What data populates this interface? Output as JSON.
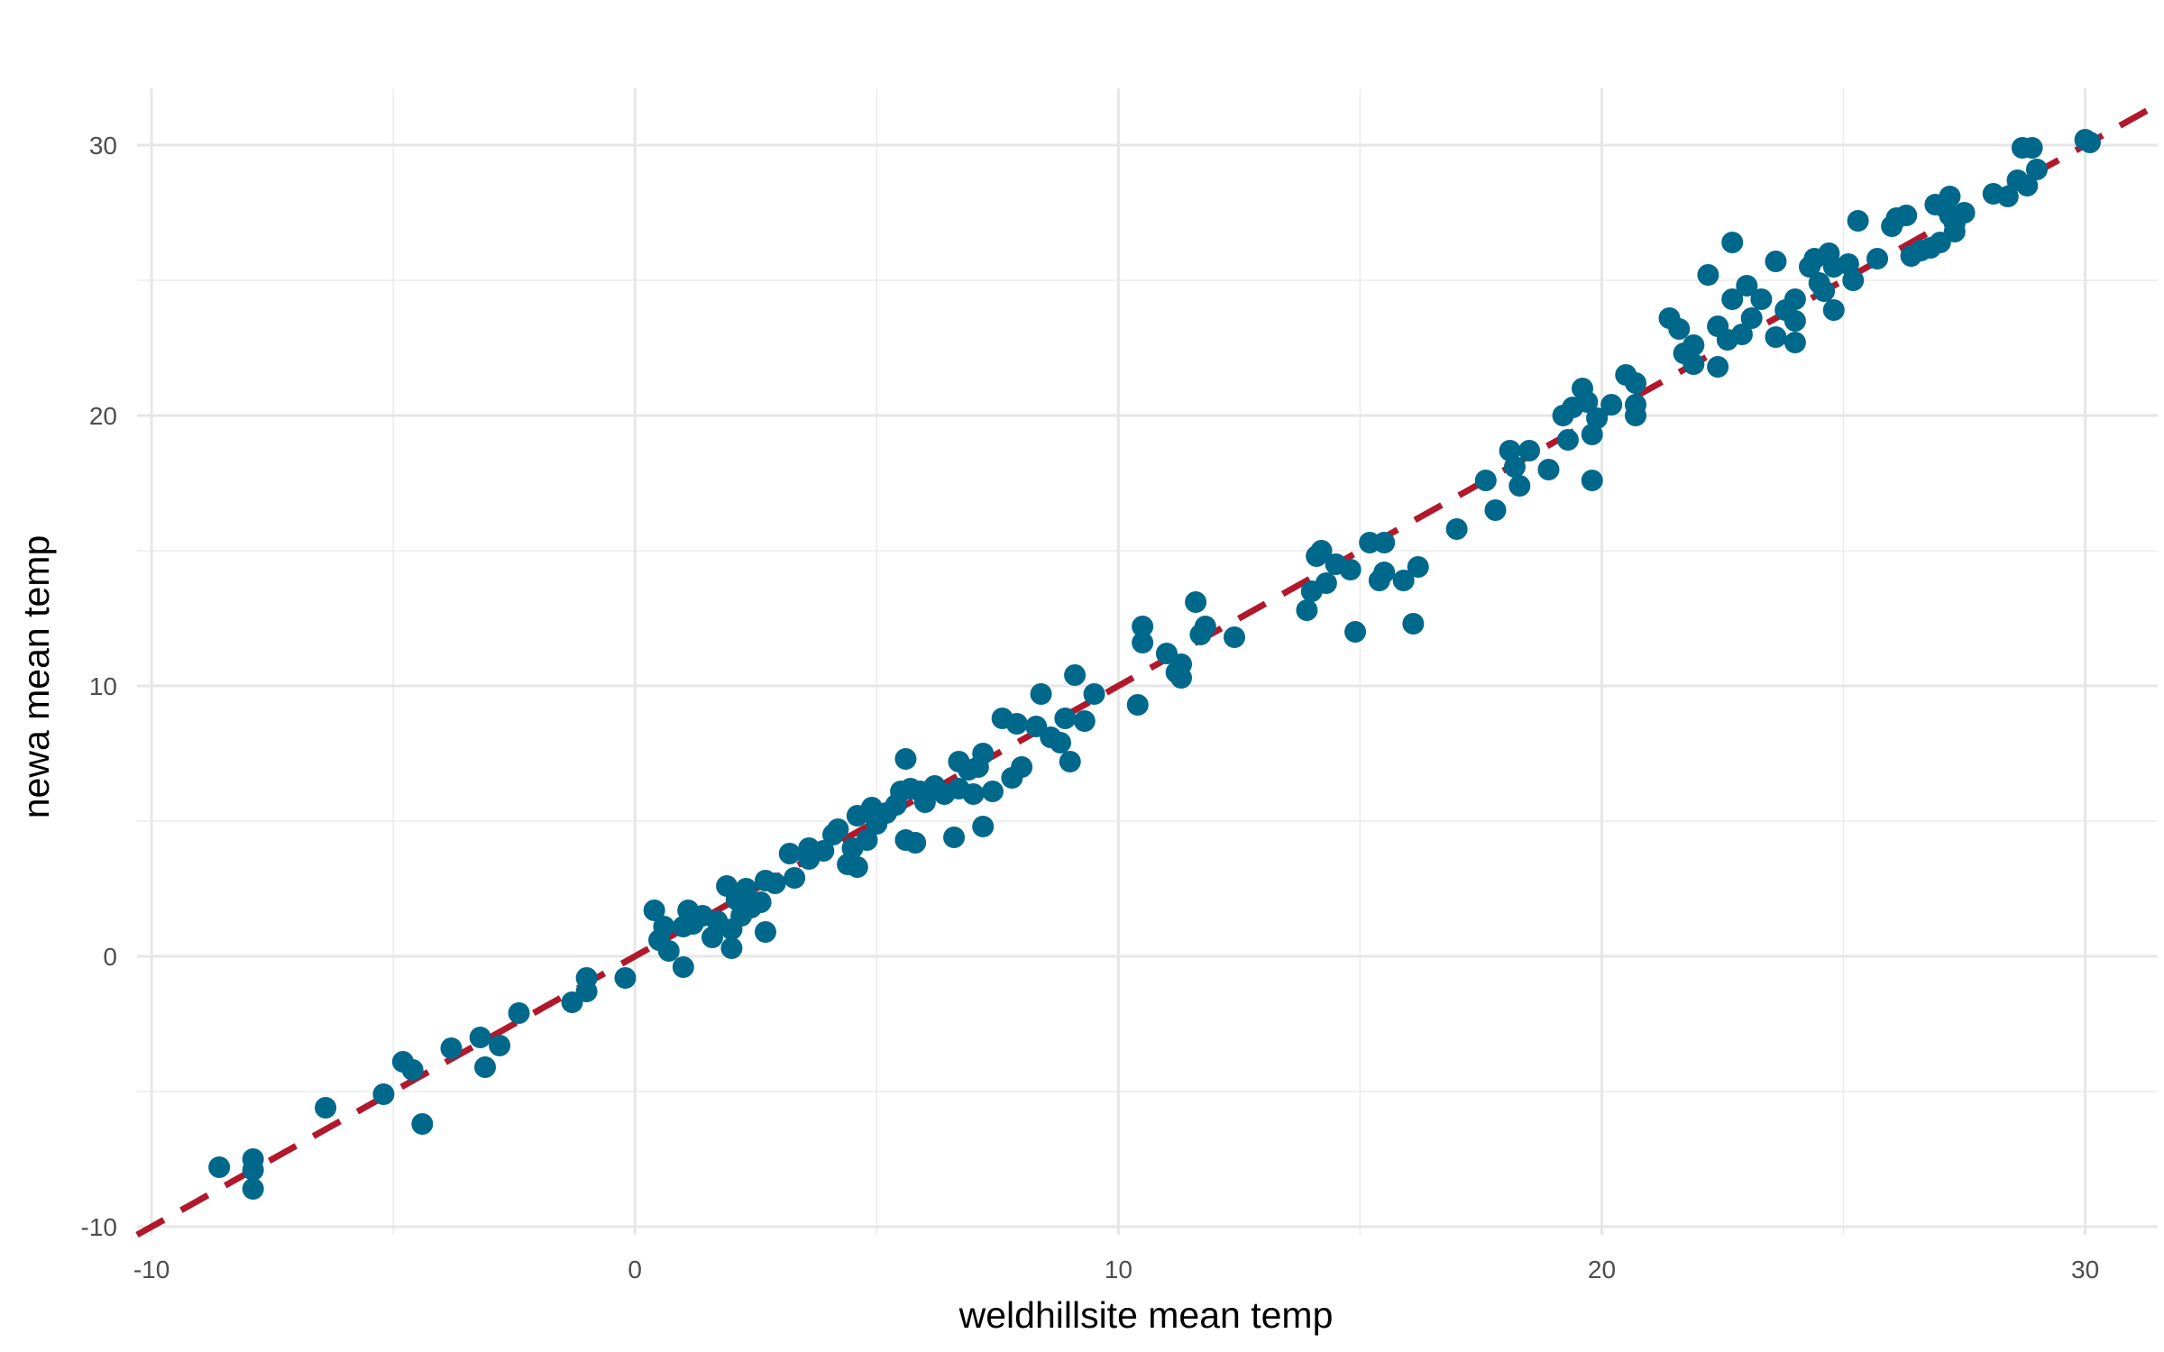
{
  "chart_data": {
    "type": "scatter",
    "title": "",
    "xlabel": "weldhillsite mean temp",
    "ylabel": "newa mean temp",
    "xlim": [
      -10.3,
      31.5
    ],
    "ylim": [
      -10.3,
      32.1
    ],
    "x_ticks": [
      -10,
      0,
      10,
      20,
      30
    ],
    "x_tick_labels": [
      "-10",
      "0",
      "10",
      "20",
      "30"
    ],
    "y_ticks": [
      -10,
      0,
      10,
      20,
      30
    ],
    "y_tick_labels": [
      "-10",
      "0",
      "10",
      "20",
      "30"
    ],
    "grid": true,
    "legend": "none",
    "point_color": "#00688b",
    "line_color": "#b2182b",
    "reference_line": {
      "type": "dashed",
      "slope": 1,
      "intercept": 0
    },
    "points": [
      [
        -8.6,
        -7.8
      ],
      [
        -7.9,
        -7.5
      ],
      [
        -7.9,
        -7.9
      ],
      [
        -7.9,
        -8.6
      ],
      [
        -6.4,
        -5.6
      ],
      [
        -5.2,
        -5.1
      ],
      [
        -4.8,
        -3.9
      ],
      [
        -4.6,
        -4.2
      ],
      [
        -4.4,
        -6.2
      ],
      [
        -3.8,
        -3.4
      ],
      [
        -3.2,
        -3.0
      ],
      [
        -3.1,
        -4.1
      ],
      [
        -2.8,
        -3.3
      ],
      [
        -2.4,
        -2.1
      ],
      [
        -1.3,
        -1.7
      ],
      [
        -1.0,
        -1.3
      ],
      [
        -1.0,
        -0.8
      ],
      [
        -0.2,
        -0.8
      ],
      [
        0.4,
        1.7
      ],
      [
        0.5,
        0.6
      ],
      [
        0.6,
        1.1
      ],
      [
        0.7,
        0.2
      ],
      [
        1.0,
        1.1
      ],
      [
        1.0,
        -0.4
      ],
      [
        1.1,
        1.7
      ],
      [
        1.2,
        1.2
      ],
      [
        1.4,
        1.5
      ],
      [
        1.6,
        0.7
      ],
      [
        1.7,
        1.3
      ],
      [
        1.9,
        2.6
      ],
      [
        2.0,
        1.0
      ],
      [
        2.0,
        0.3
      ],
      [
        2.1,
        2.1
      ],
      [
        2.2,
        1.5
      ],
      [
        2.3,
        2.5
      ],
      [
        2.4,
        1.8
      ],
      [
        2.6,
        2.0
      ],
      [
        2.7,
        2.8
      ],
      [
        2.7,
        0.9
      ],
      [
        2.9,
        2.7
      ],
      [
        3.2,
        3.8
      ],
      [
        3.3,
        2.9
      ],
      [
        3.6,
        3.6
      ],
      [
        3.6,
        4.0
      ],
      [
        3.9,
        3.9
      ],
      [
        4.1,
        4.5
      ],
      [
        4.2,
        4.7
      ],
      [
        4.4,
        3.4
      ],
      [
        4.5,
        4.0
      ],
      [
        4.6,
        5.2
      ],
      [
        4.6,
        3.3
      ],
      [
        4.8,
        4.3
      ],
      [
        4.9,
        5.5
      ],
      [
        5.0,
        4.9
      ],
      [
        5.2,
        5.3
      ],
      [
        5.4,
        5.6
      ],
      [
        5.5,
        6.1
      ],
      [
        5.6,
        4.3
      ],
      [
        5.6,
        7.3
      ],
      [
        5.7,
        6.2
      ],
      [
        5.8,
        4.2
      ],
      [
        5.9,
        6.1
      ],
      [
        6.0,
        5.7
      ],
      [
        6.2,
        6.3
      ],
      [
        6.4,
        6.0
      ],
      [
        6.6,
        4.4
      ],
      [
        6.7,
        6.2
      ],
      [
        6.7,
        7.2
      ],
      [
        6.9,
        6.9
      ],
      [
        7.0,
        6.0
      ],
      [
        7.1,
        7.0
      ],
      [
        7.2,
        7.5
      ],
      [
        7.2,
        4.8
      ],
      [
        7.4,
        6.1
      ],
      [
        7.6,
        8.8
      ],
      [
        7.8,
        6.6
      ],
      [
        7.9,
        8.6
      ],
      [
        8.0,
        7.0
      ],
      [
        8.3,
        8.5
      ],
      [
        8.4,
        9.7
      ],
      [
        8.6,
        8.1
      ],
      [
        8.8,
        7.9
      ],
      [
        8.9,
        8.8
      ],
      [
        9.0,
        7.2
      ],
      [
        9.1,
        10.4
      ],
      [
        9.3,
        8.7
      ],
      [
        9.5,
        9.7
      ],
      [
        10.4,
        9.3
      ],
      [
        10.5,
        12.2
      ],
      [
        10.5,
        11.6
      ],
      [
        11.0,
        11.2
      ],
      [
        11.2,
        10.5
      ],
      [
        11.3,
        10.8
      ],
      [
        11.3,
        10.3
      ],
      [
        11.6,
        13.1
      ],
      [
        11.7,
        11.9
      ],
      [
        11.8,
        12.2
      ],
      [
        12.4,
        11.8
      ],
      [
        13.9,
        12.8
      ],
      [
        14.0,
        13.5
      ],
      [
        14.1,
        14.8
      ],
      [
        14.2,
        15.0
      ],
      [
        14.3,
        13.8
      ],
      [
        14.5,
        14.5
      ],
      [
        14.8,
        14.3
      ],
      [
        14.9,
        12.0
      ],
      [
        15.2,
        15.3
      ],
      [
        15.4,
        13.9
      ],
      [
        15.5,
        14.2
      ],
      [
        15.5,
        15.3
      ],
      [
        15.9,
        13.9
      ],
      [
        16.1,
        12.3
      ],
      [
        16.2,
        14.4
      ],
      [
        17.0,
        15.8
      ],
      [
        17.6,
        17.6
      ],
      [
        17.8,
        16.5
      ],
      [
        18.1,
        18.7
      ],
      [
        18.2,
        18.1
      ],
      [
        18.3,
        17.4
      ],
      [
        18.5,
        18.7
      ],
      [
        18.9,
        18.0
      ],
      [
        19.2,
        20.0
      ],
      [
        19.3,
        19.1
      ],
      [
        19.4,
        20.3
      ],
      [
        19.6,
        21.0
      ],
      [
        19.7,
        20.5
      ],
      [
        19.8,
        17.6
      ],
      [
        19.8,
        19.3
      ],
      [
        19.9,
        19.9
      ],
      [
        20.2,
        20.4
      ],
      [
        20.5,
        21.5
      ],
      [
        20.7,
        21.2
      ],
      [
        20.7,
        20.4
      ],
      [
        20.7,
        20.0
      ],
      [
        21.4,
        23.6
      ],
      [
        21.6,
        23.2
      ],
      [
        21.7,
        22.3
      ],
      [
        21.9,
        22.6
      ],
      [
        21.9,
        21.9
      ],
      [
        22.2,
        25.2
      ],
      [
        22.4,
        21.8
      ],
      [
        22.4,
        23.3
      ],
      [
        22.6,
        22.8
      ],
      [
        22.7,
        26.4
      ],
      [
        22.7,
        24.3
      ],
      [
        22.9,
        23.0
      ],
      [
        23.0,
        24.8
      ],
      [
        23.1,
        23.6
      ],
      [
        23.3,
        24.3
      ],
      [
        23.6,
        25.7
      ],
      [
        23.6,
        22.9
      ],
      [
        23.8,
        23.9
      ],
      [
        24.0,
        23.5
      ],
      [
        24.0,
        24.3
      ],
      [
        24.0,
        22.7
      ],
      [
        24.3,
        25.5
      ],
      [
        24.4,
        25.8
      ],
      [
        24.5,
        24.9
      ],
      [
        24.6,
        24.6
      ],
      [
        24.7,
        26.0
      ],
      [
        24.8,
        25.5
      ],
      [
        24.8,
        23.9
      ],
      [
        25.1,
        25.6
      ],
      [
        25.2,
        25.0
      ],
      [
        25.3,
        27.2
      ],
      [
        25.7,
        25.8
      ],
      [
        26.0,
        27.0
      ],
      [
        26.1,
        27.3
      ],
      [
        26.3,
        27.4
      ],
      [
        26.4,
        25.9
      ],
      [
        26.6,
        26.1
      ],
      [
        26.8,
        26.2
      ],
      [
        26.9,
        27.8
      ],
      [
        27.0,
        26.4
      ],
      [
        27.1,
        27.7
      ],
      [
        27.2,
        27.4
      ],
      [
        27.2,
        28.1
      ],
      [
        27.3,
        27.1
      ],
      [
        27.3,
        26.8
      ],
      [
        27.5,
        27.5
      ],
      [
        28.1,
        28.2
      ],
      [
        28.4,
        28.1
      ],
      [
        28.6,
        28.7
      ],
      [
        28.7,
        29.9
      ],
      [
        28.8,
        28.5
      ],
      [
        28.9,
        29.9
      ],
      [
        29.0,
        29.1
      ],
      [
        30.0,
        30.2
      ],
      [
        30.1,
        30.1
      ]
    ]
  }
}
